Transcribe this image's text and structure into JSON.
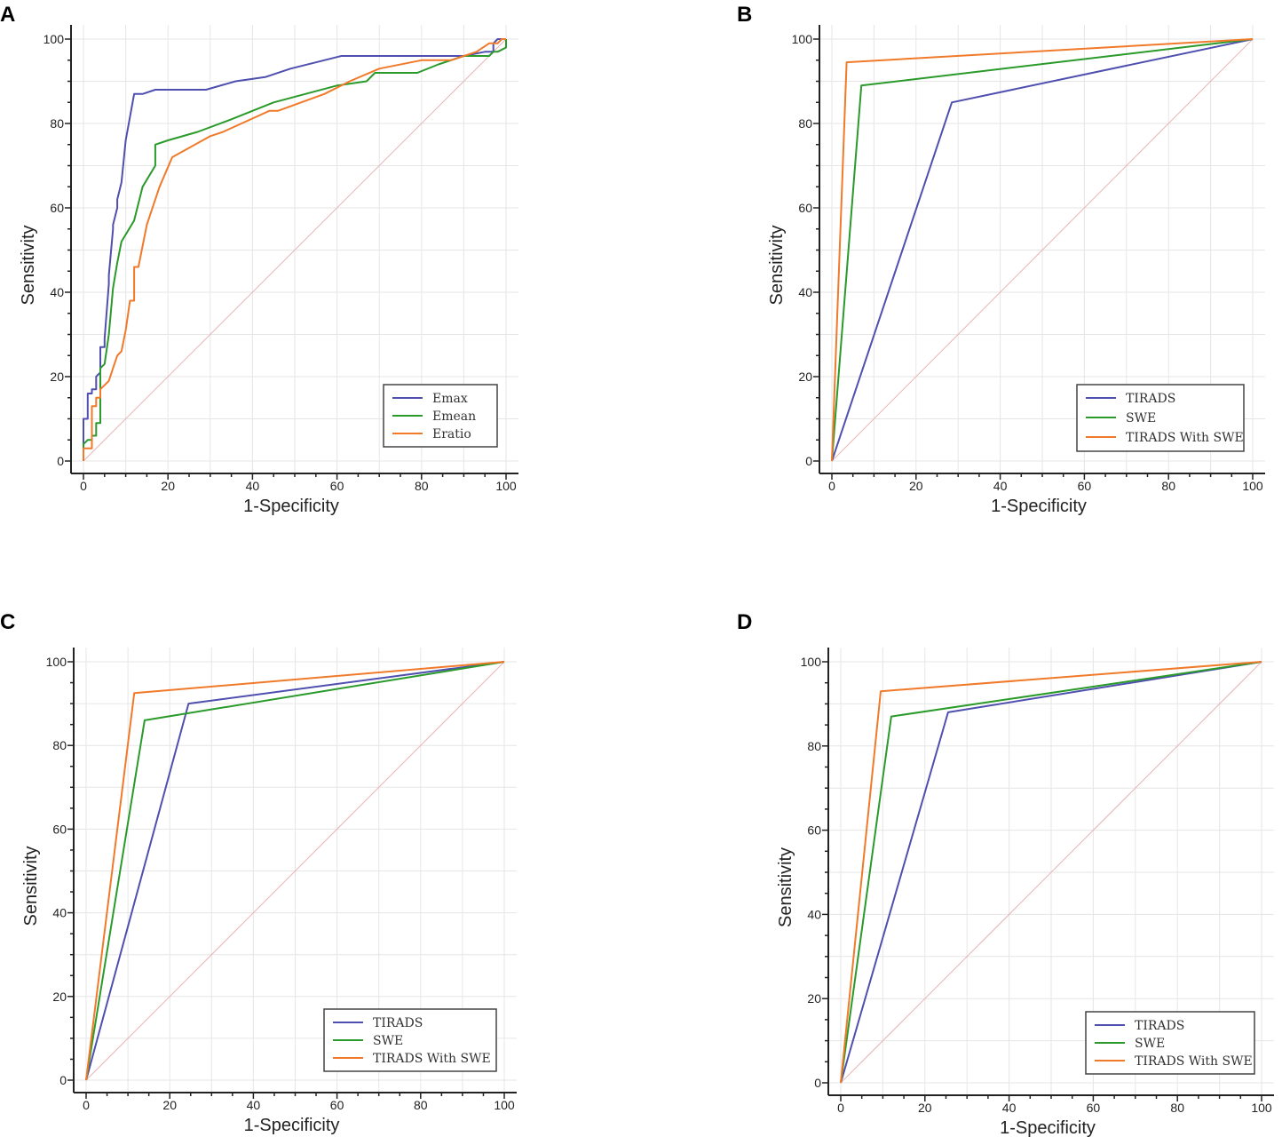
{
  "colors": {
    "blue": "#4f4fb0",
    "green": "#2a9a2a",
    "orange": "#f07a2a",
    "diagonal": "#e8b4b4"
  },
  "chart_data": [
    {
      "panel": "A",
      "type": "line",
      "xlabel": "1-Specificity",
      "ylabel": "Sensitivity",
      "xlim": [
        0,
        100
      ],
      "ylim": [
        0,
        100
      ],
      "xticks": [
        0,
        20,
        40,
        60,
        80,
        100
      ],
      "yticks": [
        0,
        20,
        40,
        60,
        80,
        100
      ],
      "grid": true,
      "legend_position": "bottom-right",
      "series": [
        {
          "name": "Emax",
          "color": "#4f4fb0",
          "points": [
            [
              0,
              0
            ],
            [
              0,
              10
            ],
            [
              1,
              10
            ],
            [
              1,
              16
            ],
            [
              2,
              16
            ],
            [
              2,
              17
            ],
            [
              3,
              17
            ],
            [
              3,
              20
            ],
            [
              4,
              21
            ],
            [
              4,
              27
            ],
            [
              5,
              27
            ],
            [
              5,
              29
            ],
            [
              6,
              42
            ],
            [
              6,
              44
            ],
            [
              7,
              55
            ],
            [
              7,
              56
            ],
            [
              8,
              60
            ],
            [
              8,
              62
            ],
            [
              9,
              66
            ],
            [
              10,
              76
            ],
            [
              12,
              87
            ],
            [
              14,
              87
            ],
            [
              17,
              88
            ],
            [
              29,
              88
            ],
            [
              36,
              90
            ],
            [
              43,
              91
            ],
            [
              49,
              93
            ],
            [
              57,
              95
            ],
            [
              61,
              96
            ],
            [
              90,
              96
            ],
            [
              95,
              97
            ],
            [
              97,
              97
            ],
            [
              97,
              99
            ],
            [
              98,
              100
            ],
            [
              100,
              100
            ]
          ]
        },
        {
          "name": "Emean",
          "color": "#2a9a2a",
          "points": [
            [
              0,
              0
            ],
            [
              0,
              4
            ],
            [
              1,
              5
            ],
            [
              2,
              5
            ],
            [
              2,
              6
            ],
            [
              3,
              6
            ],
            [
              3,
              9
            ],
            [
              4,
              9
            ],
            [
              4,
              22
            ],
            [
              5,
              23
            ],
            [
              6,
              30
            ],
            [
              7,
              41
            ],
            [
              8,
              47
            ],
            [
              9,
              52
            ],
            [
              12,
              57
            ],
            [
              14,
              65
            ],
            [
              17,
              70
            ],
            [
              17,
              75
            ],
            [
              20,
              76
            ],
            [
              27,
              78
            ],
            [
              35,
              81
            ],
            [
              45,
              85
            ],
            [
              60,
              89
            ],
            [
              67,
              90
            ],
            [
              69,
              92
            ],
            [
              73,
              92
            ],
            [
              79,
              92
            ],
            [
              84,
              94
            ],
            [
              90,
              96
            ],
            [
              96,
              96
            ],
            [
              97,
              97
            ],
            [
              98,
              97
            ],
            [
              100,
              98
            ],
            [
              100,
              100
            ]
          ]
        },
        {
          "name": "Eratio",
          "color": "#f07a2a",
          "points": [
            [
              0,
              0
            ],
            [
              0,
              3
            ],
            [
              2,
              3
            ],
            [
              2,
              13
            ],
            [
              3,
              13
            ],
            [
              3,
              15
            ],
            [
              4,
              15
            ],
            [
              4,
              17
            ],
            [
              6,
              19
            ],
            [
              7,
              22
            ],
            [
              8,
              25
            ],
            [
              9,
              26
            ],
            [
              10,
              31
            ],
            [
              11,
              38
            ],
            [
              12,
              38
            ],
            [
              12,
              46
            ],
            [
              13,
              46
            ],
            [
              15,
              56
            ],
            [
              18,
              65
            ],
            [
              21,
              72
            ],
            [
              30,
              77
            ],
            [
              33,
              78
            ],
            [
              44,
              83
            ],
            [
              46,
              83
            ],
            [
              57,
              87
            ],
            [
              63,
              90
            ],
            [
              70,
              93
            ],
            [
              80,
              95
            ],
            [
              87,
              95
            ],
            [
              93,
              97
            ],
            [
              96,
              99
            ],
            [
              98,
              99
            ],
            [
              99,
              100
            ],
            [
              100,
              100
            ]
          ]
        }
      ],
      "diagonal": [
        [
          0,
          0
        ],
        [
          100,
          100
        ]
      ]
    },
    {
      "panel": "B",
      "type": "line",
      "xlabel": "1-Specificity",
      "ylabel": "Sensitivity",
      "xlim": [
        0,
        100
      ],
      "ylim": [
        0,
        100
      ],
      "xticks": [
        0,
        20,
        40,
        60,
        80,
        100
      ],
      "yticks": [
        0,
        20,
        40,
        60,
        80,
        100
      ],
      "grid": true,
      "legend_position": "bottom-right",
      "series": [
        {
          "name": "TIRADS",
          "color": "#4f4fb0",
          "points": [
            [
              0,
              0
            ],
            [
              28.5,
              85
            ],
            [
              100,
              100
            ]
          ]
        },
        {
          "name": "SWE",
          "color": "#2a9a2a",
          "points": [
            [
              0,
              0
            ],
            [
              7,
              89
            ],
            [
              100,
              100
            ]
          ]
        },
        {
          "name": "TIRADS With SWE",
          "color": "#f07a2a",
          "points": [
            [
              0,
              0
            ],
            [
              3.5,
              94.5
            ],
            [
              100,
              100
            ]
          ]
        }
      ],
      "diagonal": [
        [
          0,
          0
        ],
        [
          100,
          100
        ]
      ]
    },
    {
      "panel": "C",
      "type": "line",
      "xlabel": "1-Specificity",
      "ylabel": "Sensitivity",
      "xlim": [
        0,
        100
      ],
      "ylim": [
        0,
        100
      ],
      "xticks": [
        0,
        20,
        40,
        60,
        80,
        100
      ],
      "yticks": [
        0,
        20,
        40,
        60,
        80,
        100
      ],
      "grid": true,
      "legend_position": "bottom-right",
      "series": [
        {
          "name": "TIRADS",
          "color": "#4f4fb0",
          "points": [
            [
              0,
              0
            ],
            [
              24.5,
              90
            ],
            [
              100,
              100
            ]
          ]
        },
        {
          "name": "SWE",
          "color": "#2a9a2a",
          "points": [
            [
              0,
              0
            ],
            [
              14,
              86
            ],
            [
              100,
              100
            ]
          ]
        },
        {
          "name": "TIRADS With SWE",
          "color": "#f07a2a",
          "points": [
            [
              0,
              0
            ],
            [
              11.5,
              92.5
            ],
            [
              100,
              100
            ]
          ]
        }
      ],
      "diagonal": [
        [
          0,
          0
        ],
        [
          100,
          100
        ]
      ]
    },
    {
      "panel": "D",
      "type": "line",
      "xlabel": "1-Specificity",
      "ylabel": "Sensitivity",
      "xlim": [
        0,
        100
      ],
      "ylim": [
        0,
        100
      ],
      "xticks": [
        0,
        20,
        40,
        60,
        80,
        100
      ],
      "yticks": [
        0,
        20,
        40,
        60,
        80,
        100
      ],
      "grid": true,
      "legend_position": "bottom-right",
      "series": [
        {
          "name": "TIRADS",
          "color": "#4f4fb0",
          "points": [
            [
              0,
              0
            ],
            [
              25.5,
              88
            ],
            [
              100,
              100
            ]
          ]
        },
        {
          "name": "SWE",
          "color": "#2a9a2a",
          "points": [
            [
              0,
              0
            ],
            [
              12,
              87
            ],
            [
              100,
              100
            ]
          ]
        },
        {
          "name": "TIRADS With SWE",
          "color": "#f07a2a",
          "points": [
            [
              0,
              0
            ],
            [
              9.5,
              93
            ],
            [
              100,
              100
            ]
          ]
        }
      ],
      "diagonal": [
        [
          0,
          0
        ],
        [
          100,
          100
        ]
      ]
    }
  ]
}
